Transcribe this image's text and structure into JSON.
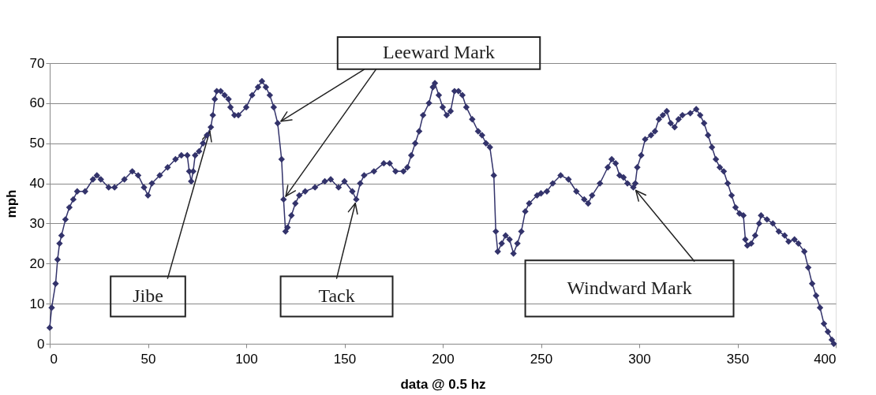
{
  "chart_data": {
    "type": "line",
    "xlabel": "data @ 0.5 hz",
    "ylabel": "mph",
    "x": [
      0,
      1,
      3,
      4,
      5,
      6,
      8,
      10,
      12,
      14,
      18,
      22,
      24,
      26,
      30,
      33,
      38,
      42,
      45,
      48,
      50,
      52,
      56,
      60,
      64,
      67,
      70,
      71,
      72,
      73,
      74,
      76,
      78,
      80,
      82,
      83,
      84,
      85,
      87,
      89,
      91,
      92,
      94,
      96,
      100,
      103,
      106,
      108,
      110,
      112,
      114,
      116,
      118,
      119,
      120,
      121,
      123,
      125,
      127,
      130,
      135,
      140,
      143,
      147,
      150,
      154,
      156,
      158,
      160,
      165,
      170,
      173,
      176,
      180,
      182,
      184,
      186,
      188,
      190,
      193,
      195,
      196,
      198,
      200,
      202,
      204,
      206,
      208,
      210,
      212,
      215,
      218,
      220,
      222,
      224,
      226,
      227,
      228,
      230,
      232,
      234,
      236,
      238,
      240,
      242,
      244,
      248,
      250,
      253,
      256,
      260,
      264,
      268,
      272,
      274,
      276,
      280,
      284,
      286,
      288,
      290,
      292,
      294,
      297,
      298,
      299,
      301,
      303,
      306,
      308,
      310,
      312,
      314,
      316,
      318,
      320,
      322,
      326,
      329,
      331,
      333,
      335,
      337,
      339,
      341,
      343,
      345,
      347,
      349,
      351,
      353,
      354,
      355,
      357,
      359,
      361,
      362,
      365,
      368,
      371,
      374,
      376,
      379,
      381,
      384,
      386,
      388,
      390,
      392,
      394,
      396,
      398,
      399
    ],
    "series": [
      {
        "color": "#33336b",
        "values": [
          4,
          9,
          15,
          21,
          25,
          27,
          31,
          34,
          36,
          38,
          38,
          41,
          42,
          41,
          39,
          39,
          41,
          43,
          42,
          39,
          37,
          40,
          42,
          44,
          46,
          47,
          47,
          43,
          40.5,
          43,
          47,
          48,
          50,
          52,
          54,
          57,
          61,
          63,
          63,
          62,
          61,
          59,
          57,
          57,
          59,
          62,
          64,
          65.5,
          64,
          62,
          59,
          55,
          46,
          36,
          28,
          29,
          32,
          35,
          37,
          38,
          39,
          40.5,
          41,
          39,
          40.5,
          38,
          36,
          40,
          42,
          43,
          45,
          45,
          43,
          43,
          44,
          47,
          50,
          53,
          57,
          60,
          64,
          65,
          62,
          59,
          57,
          58,
          63,
          63,
          62,
          59,
          56,
          53,
          52,
          50,
          49,
          42,
          28,
          23,
          25,
          27,
          26,
          22.5,
          25,
          28,
          33,
          35,
          37,
          37.5,
          38,
          40,
          42,
          41,
          38,
          36,
          35,
          37,
          40,
          44,
          46,
          45,
          42,
          41.5,
          40,
          39,
          40,
          44,
          47,
          51,
          52,
          53,
          56,
          57,
          58,
          55,
          54,
          56,
          57,
          57.5,
          58.5,
          57,
          55,
          52,
          49,
          46,
          44,
          43,
          40,
          37,
          34,
          32.5,
          32,
          26,
          24.5,
          25,
          27,
          30,
          32,
          31,
          30,
          28,
          27,
          25.5,
          26,
          25,
          23,
          19,
          15,
          12,
          9,
          5,
          3,
          1,
          0
        ]
      }
    ],
    "marker": "diamond",
    "line_style": "solid",
    "xlim": [
      0,
      400
    ],
    "xticks": [
      0,
      50,
      100,
      150,
      200,
      250,
      300,
      350,
      400
    ],
    "ylim": [
      0,
      70
    ],
    "yticks": [
      0,
      10,
      20,
      30,
      40,
      50,
      60,
      70
    ],
    "grid": "y",
    "annotations": [
      {
        "text": "Leeward Mark",
        "x": 116,
        "y": 55
      },
      {
        "text": "Jibe",
        "x": 82,
        "y": 54
      },
      {
        "text": "Tack",
        "x": 156,
        "y": 36
      },
      {
        "text": "Windward Mark",
        "x": 297,
        "y": 39
      }
    ]
  }
}
